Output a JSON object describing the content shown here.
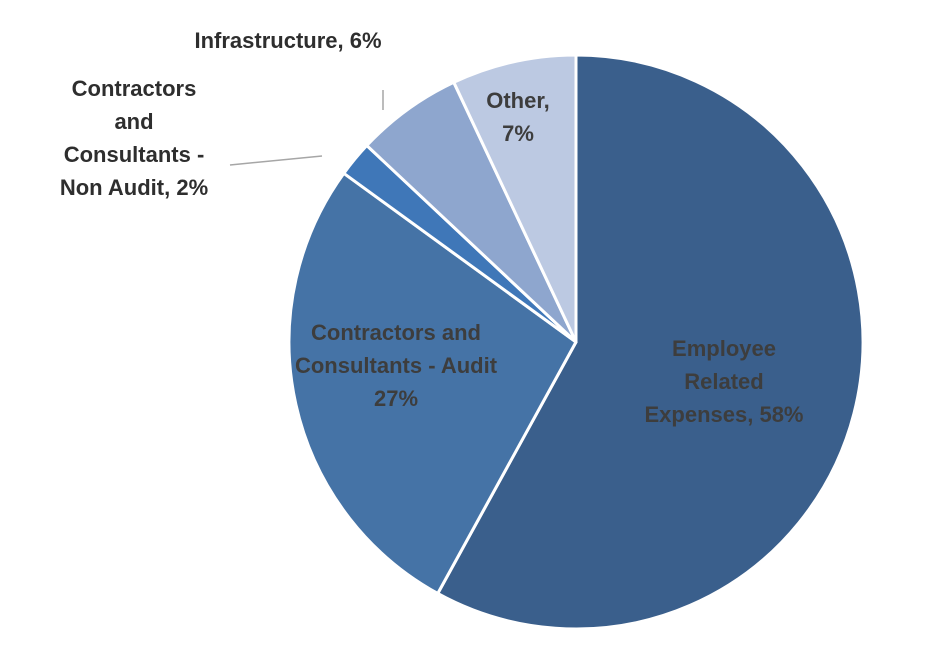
{
  "chart_data": {
    "type": "pie",
    "title": "",
    "start_angle_deg": 0,
    "direction": "clockwise",
    "slices": [
      {
        "label": "Employee Related Expenses",
        "value": 58,
        "display_lines": [
          "Employee",
          "Related",
          "Expenses, 58%"
        ],
        "color": "#3a5f8c",
        "label_position": "inside"
      },
      {
        "label": "Contractors and Consultants - Audit",
        "value": 27,
        "display_lines": [
          "Contractors and",
          "Consultants - Audit",
          "27%"
        ],
        "color": "#4573a6",
        "label_position": "inside"
      },
      {
        "label": "Contractors and Consultants - Non Audit",
        "value": 2,
        "display_lines": [
          "Contractors",
          "and",
          "Consultants -",
          "Non Audit, 2%"
        ],
        "color": "#3f77b8",
        "label_position": "outside"
      },
      {
        "label": "Infrastructure",
        "value": 6,
        "display_lines": [
          "Infrastructure, 6%"
        ],
        "color": "#8ea6ce",
        "label_position": "outside"
      },
      {
        "label": "Other",
        "value": 7,
        "display_lines": [
          "Other,",
          "7%"
        ],
        "color": "#bcc9e2",
        "label_position": "inside"
      }
    ],
    "legend": "none"
  }
}
